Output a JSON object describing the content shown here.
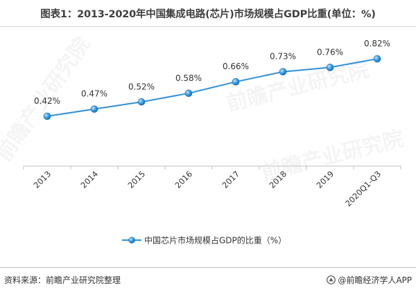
{
  "title": "图表1：2013-2020年中国集成电路(芯片)市场规模占GDP比重(单位：%)",
  "chart_data": {
    "type": "line",
    "title": "图表1：2013-2020年中国集成电路(芯片)市场规模占GDP比重(单位：%)",
    "categories": [
      "2013",
      "2014",
      "2015",
      "2016",
      "2017",
      "2018",
      "2019",
      "2020Q1-Q3"
    ],
    "series": [
      {
        "name": "中国芯片市场规模占GDP的比重（%）",
        "values": [
          0.42,
          0.47,
          0.52,
          0.58,
          0.66,
          0.73,
          0.76,
          0.82
        ],
        "labels": [
          "0.42%",
          "0.47%",
          "0.52%",
          "0.58%",
          "0.66%",
          "0.73%",
          "0.76%",
          "0.82%"
        ]
      }
    ],
    "xlabel": "",
    "ylabel": "",
    "grid": false,
    "legend_position": "bottom",
    "line_color": "#2f8fd8"
  },
  "footer": {
    "source": "资料来源：前瞻产业研究院整理",
    "brand": "@前瞻经济学人APP"
  },
  "watermark": "前瞻产业研究院"
}
